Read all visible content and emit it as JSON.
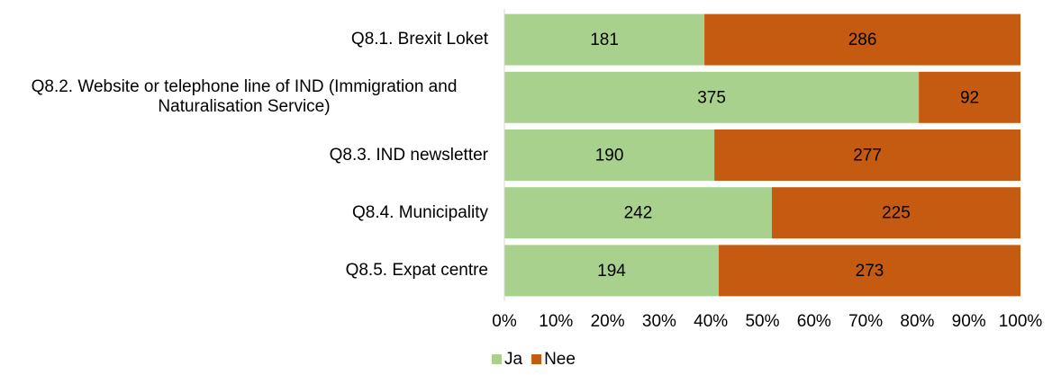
{
  "chart_data": {
    "type": "bar",
    "orientation": "horizontal",
    "stacking": "percent",
    "categories": [
      "Q8.1. Brexit Loket",
      "Q8.2. Website or telephone line of IND (Immigration and Naturalisation Service)",
      "Q8.3. IND newsletter",
      "Q8.4. Municipality",
      "Q8.5. Expat centre"
    ],
    "series": [
      {
        "name": "Ja",
        "color": "#a9d18e",
        "values": [
          181,
          375,
          190,
          242,
          194
        ]
      },
      {
        "name": "Nee",
        "color": "#c55a11",
        "values": [
          286,
          92,
          277,
          225,
          273
        ]
      }
    ],
    "xlim": [
      0,
      100
    ],
    "xticks": [
      {
        "value": 0,
        "label": "0%"
      },
      {
        "value": 10,
        "label": "10%"
      },
      {
        "value": 20,
        "label": "20%"
      },
      {
        "value": 30,
        "label": "30%"
      },
      {
        "value": 40,
        "label": "40%"
      },
      {
        "value": 50,
        "label": "50%"
      },
      {
        "value": 60,
        "label": "60%"
      },
      {
        "value": 70,
        "label": "70%"
      },
      {
        "value": 80,
        "label": "80%"
      },
      {
        "value": 90,
        "label": "90%"
      },
      {
        "value": 100,
        "label": "100%"
      }
    ],
    "legend": "bottom",
    "grid": false
  }
}
